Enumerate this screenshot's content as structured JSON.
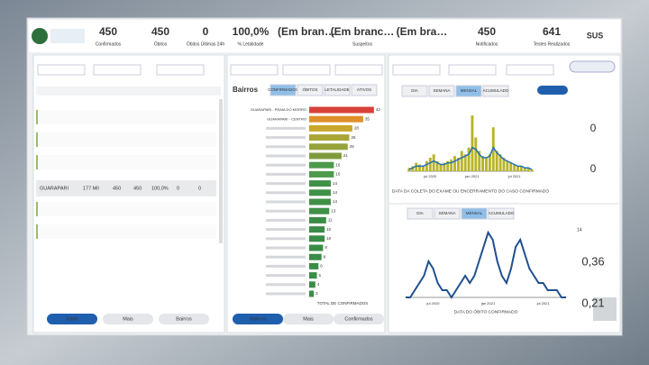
{
  "header": {
    "logo_text": "SUS",
    "kpis": [
      {
        "value": "450",
        "label": "Confirmados"
      },
      {
        "value": "450",
        "label": "Óbitos"
      },
      {
        "value": "0",
        "label": "Óbitos Últimas 24h"
      },
      {
        "value": "100,0%",
        "label": "% Letalidade"
      },
      {
        "value": "(Em bran…"
      },
      {
        "value": "(Em branc…",
        "label": "Suspeitos"
      },
      {
        "value": "(Em bra…"
      },
      {
        "value": "450",
        "label": "Notificados"
      },
      {
        "value": "641",
        "label": "Testes Realizados"
      }
    ]
  },
  "left_panel": {
    "selected_row": [
      "GUARAPARI",
      "177 Mil",
      "450",
      "450",
      "100,0%",
      "0",
      "0"
    ],
    "buttons": [
      "Totais",
      "Mais",
      "Bairros"
    ]
  },
  "middle_panel": {
    "buttons": [
      "Bairros",
      "Mais",
      "Confirmados"
    ]
  },
  "right_panel": {
    "top_stats": [
      "0",
      "0"
    ],
    "bottom_stats": [
      "14",
      "0,36",
      "0,21"
    ]
  },
  "chart_data": [
    {
      "type": "hbar",
      "title": "Bairros",
      "tabs": [
        "CONFIRMADOS",
        "ÓBITOS",
        "LETALIDADE",
        "ATIVOS"
      ],
      "x_label": "TOTAL DE CONFIRMADOS",
      "xlim": [
        0,
        45
      ],
      "categories": [
        "GUARAPARI - PRAIA DO MORRO",
        "GUARAPARI - CENTRO",
        null,
        null,
        null,
        null,
        null,
        null,
        null,
        null,
        null,
        null,
        null,
        null,
        null,
        null,
        null,
        null,
        null,
        null,
        null
      ],
      "values": [
        42,
        35,
        28,
        26,
        25,
        21,
        16,
        16,
        14,
        14,
        14,
        13,
        11,
        10,
        10,
        9,
        8,
        6,
        5,
        4,
        3
      ],
      "colors": [
        "#d9423a",
        "#e0902a",
        "#c9a72a",
        "#a9a636",
        "#97a23a",
        "#7f9c3c",
        "#4c9a4a",
        "#4c9a4a",
        "#3f9148",
        "#3f9148",
        "#3f9148",
        "#3f9148",
        "#3a8c46",
        "#3a8c46",
        "#3a8c46",
        "#3a8c46",
        "#3a8c46",
        "#3a8c46",
        "#3a8c46",
        "#3a8c46",
        "#3a8c46"
      ]
    },
    {
      "type": "bar_line",
      "tabs": [
        "DIA",
        "SEMANA",
        "MENSAL",
        "ACUMULADO"
      ],
      "x_label": "DATA DA COLETA DO EXAME OU ENCERRAMENTO DO CASO CONFIRMADO",
      "ylim": [
        0,
        40
      ],
      "categories": [
        null,
        null,
        null,
        null,
        null,
        null,
        "jul 2020",
        null,
        null,
        null,
        null,
        null,
        null,
        null,
        null,
        null,
        null,
        null,
        "jan 2021",
        null,
        null,
        null,
        null,
        null,
        null,
        null,
        null,
        null,
        null,
        null,
        "jul 2021",
        null,
        null,
        null,
        null,
        null
      ],
      "series": [
        {
          "color": "#b8b42a",
          "values": [
            2,
            3,
            5,
            4,
            3,
            6,
            8,
            10,
            6,
            4,
            5,
            6,
            7,
            9,
            8,
            12,
            10,
            14,
            33,
            20,
            12,
            9,
            8,
            10,
            26,
            12,
            10,
            8,
            6,
            5,
            4,
            3,
            3,
            2,
            2,
            1
          ]
        },
        {
          "color": "#1f6fb5",
          "values": [
            1,
            2,
            3,
            3,
            3,
            4,
            5,
            6,
            5,
            4,
            4,
            5,
            5,
            6,
            7,
            8,
            9,
            10,
            14,
            13,
            10,
            8,
            8,
            9,
            14,
            11,
            9,
            7,
            6,
            5,
            4,
            3,
            3,
            2,
            2,
            1
          ]
        }
      ]
    },
    {
      "type": "line",
      "tabs": [
        "DIA",
        "SEMANA",
        "MENSAL",
        "ACUMULADO"
      ],
      "x_label": "DATA DO ÓBITO CONFIRMADO",
      "ylim": [
        0,
        10
      ],
      "categories": [
        null,
        null,
        null,
        null,
        null,
        null,
        "jul 2020",
        null,
        null,
        null,
        null,
        null,
        null,
        null,
        null,
        null,
        null,
        null,
        "jan 2021",
        null,
        null,
        null,
        null,
        null,
        null,
        null,
        null,
        null,
        null,
        null,
        "jul 2021",
        null,
        null,
        null,
        null,
        null
      ],
      "series": [
        {
          "color": "#1f4f8f",
          "values": [
            0,
            0,
            1,
            2,
            3,
            5,
            4,
            2,
            1,
            1,
            0,
            1,
            2,
            3,
            2,
            3,
            5,
            7,
            9,
            8,
            5,
            3,
            2,
            4,
            7,
            8,
            6,
            4,
            3,
            2,
            2,
            1,
            1,
            1,
            0,
            0
          ]
        }
      ]
    }
  ]
}
